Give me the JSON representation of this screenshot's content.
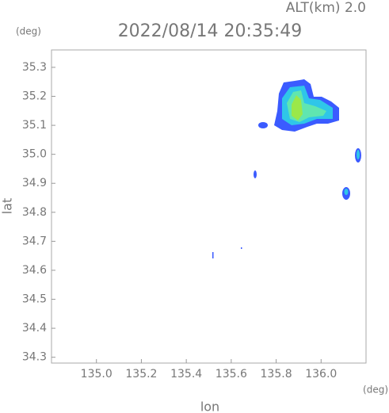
{
  "chart_data": {
    "type": "map",
    "title": "2022/08/14 20:35:49",
    "subtitle": "ALT(km) 2.0",
    "y_unit": "(deg)",
    "x_unit": "(deg)",
    "xlabel": "lon",
    "ylabel": "lat",
    "xlim": [
      134.8,
      136.2
    ],
    "xticks": [
      {
        "value": 135,
        "label": "135.0"
      },
      135.2,
      135.4,
      135.6,
      135.8,
      {
        "value": 136,
        "label": "136.0"
      }
    ],
    "ylim": [
      34.28,
      35.36
    ],
    "yticks": [
      34.3,
      34.4,
      34.5,
      34.6,
      34.7,
      34.8,
      34.9,
      {
        "value": 35,
        "label": "35.0"
      },
      35.1,
      35.2,
      35.3
    ]
  }
}
